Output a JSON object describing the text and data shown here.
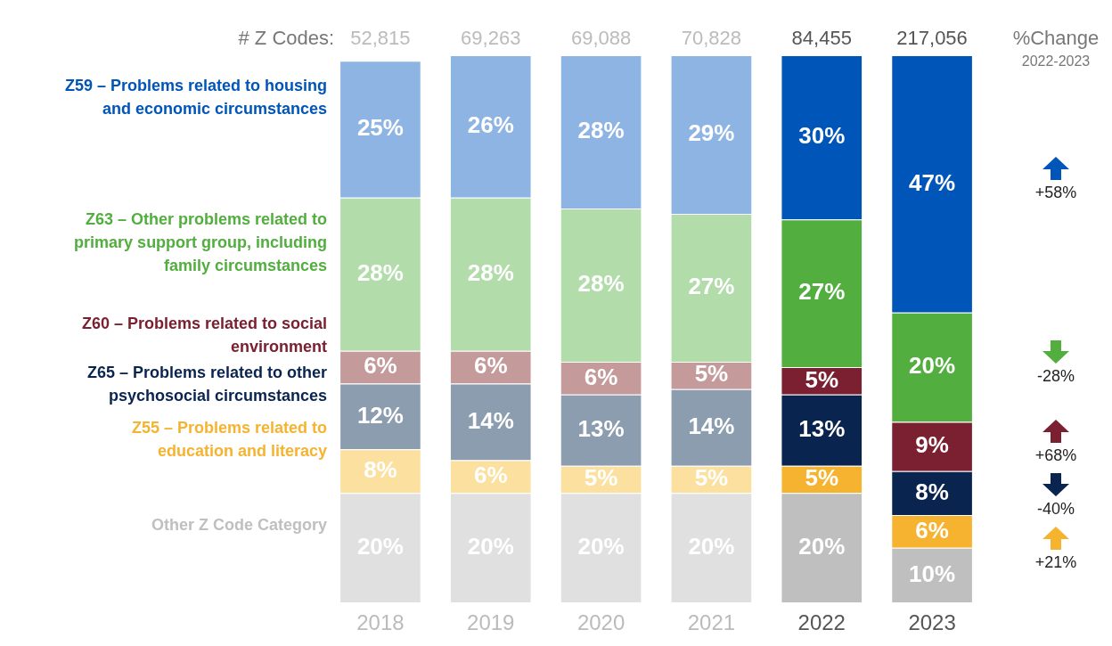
{
  "chart_data": {
    "type": "bar",
    "stacked": true,
    "categories": [
      "2018",
      "2019",
      "2020",
      "2021",
      "2022",
      "2023"
    ],
    "series": [
      {
        "name": "Other Z Code Category",
        "colors": [
          "#e0e0e0",
          "#e0e0e0",
          "#e0e0e0",
          "#e0e0e0",
          "#bfbfbf",
          "#bfbfbf"
        ],
        "values": [
          20,
          20,
          20,
          20,
          20,
          10
        ],
        "value_labels": [
          "20%",
          "20%",
          "20%",
          "20%",
          "20%",
          "10%"
        ]
      },
      {
        "name": "Z55 – Problems related to education and literacy",
        "colors": [
          "#fce0a0",
          "#fce0a0",
          "#fce0a0",
          "#fce0a0",
          "#f6b330",
          "#f6b330"
        ],
        "values": [
          8,
          6,
          5,
          5,
          5,
          6
        ],
        "value_labels": [
          "8%",
          "6%",
          "5%",
          "5%",
          "5%",
          "6%"
        ]
      },
      {
        "name": "Z65 – Problems related to other psychosocial circumstances",
        "colors": [
          "#8c9db0",
          "#8c9db0",
          "#8c9db0",
          "#8c9db0",
          "#0a2450",
          "#0a2450"
        ],
        "values": [
          12,
          14,
          13,
          14,
          13,
          8
        ],
        "value_labels": [
          "12%",
          "14%",
          "13%",
          "14%",
          "13%",
          "8%"
        ]
      },
      {
        "name": "Z60 – Problems related to social environment",
        "colors": [
          "#c49a9b",
          "#c49a9b",
          "#c49a9b",
          "#c49a9b",
          "#7a2030",
          "#7a2030"
        ],
        "values": [
          6,
          6,
          6,
          5,
          5,
          9
        ],
        "value_labels": [
          "6%",
          "6%",
          "6%",
          "5%",
          "5%",
          "9%"
        ]
      },
      {
        "name": "Z63 – Other problems related to primary support group, including family circumstances",
        "colors": [
          "#b2dcaa",
          "#b2dcaa",
          "#b2dcaa",
          "#b2dcaa",
          "#52ae3f",
          "#52ae3f"
        ],
        "values": [
          28,
          28,
          28,
          27,
          27,
          20
        ],
        "value_labels": [
          "28%",
          "28%",
          "28%",
          "27%",
          "27%",
          "20%"
        ]
      },
      {
        "name": "Z59 – Problems related to housing and economic circumstances",
        "colors": [
          "#8eb4e3",
          "#8eb4e3",
          "#8eb4e3",
          "#8eb4e3",
          "#0055b8",
          "#0055b8"
        ],
        "values": [
          25,
          26,
          28,
          29,
          30,
          47
        ],
        "value_labels": [
          "25%",
          "26%",
          "28%",
          "29%",
          "30%",
          "47%"
        ]
      }
    ],
    "tick_labels": "x",
    "legend": false,
    "annotations": [
      "# Z Codes:",
      "52,815",
      "69,263",
      "69,088",
      "70,828",
      "84,455",
      "217,056",
      "%Change",
      "2022-2023",
      "+58%",
      "-28%",
      "+68%",
      "-40%",
      "+21%"
    ]
  }
}
